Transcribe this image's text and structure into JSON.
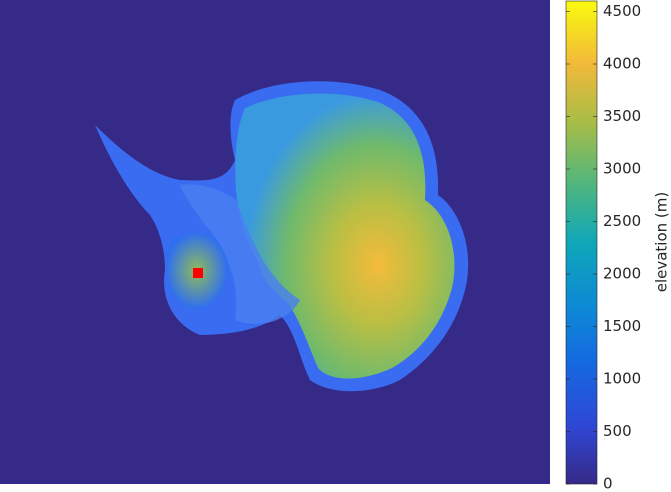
{
  "chart_data": {
    "type": "heatmap",
    "colorbar": {
      "label": "elevation (m)",
      "lim": [
        0,
        4600
      ],
      "ticks": [
        0,
        500,
        1000,
        1500,
        2000,
        2500,
        3000,
        3500,
        4000,
        4500
      ]
    }
  }
}
